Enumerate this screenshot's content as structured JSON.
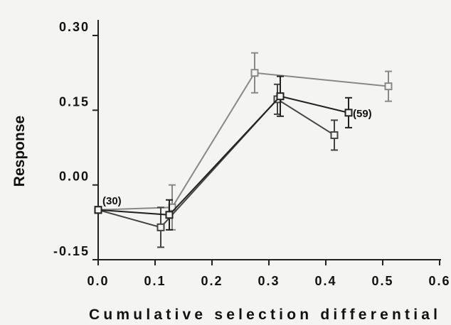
{
  "chart_data": {
    "type": "line",
    "title": "",
    "xlabel": "Cumulative selection differential",
    "ylabel": "Response",
    "xlim": [
      0.0,
      0.6
    ],
    "ylim": [
      -0.15,
      0.3
    ],
    "x_ticks": [
      "0.0",
      "0.1",
      "0.2",
      "0.3",
      "0.4",
      "0.5",
      "0.6"
    ],
    "y_ticks": [
      "-0.15",
      "0.00",
      "0.15",
      "0.30"
    ],
    "grid": false,
    "legend": "none",
    "series": [
      {
        "color": "#888888",
        "points": [
          {
            "x": 0.0,
            "y": -0.05,
            "err": 0.0
          },
          {
            "x": 0.13,
            "y": -0.045,
            "err": 0.045
          },
          {
            "x": 0.275,
            "y": 0.225,
            "err": 0.04
          },
          {
            "x": 0.51,
            "y": 0.198,
            "err": 0.03
          }
        ]
      },
      {
        "color": "#444444",
        "points": [
          {
            "x": 0.0,
            "y": -0.05,
            "err": 0.0
          },
          {
            "x": 0.11,
            "y": -0.085,
            "err": 0.04
          },
          {
            "x": 0.315,
            "y": 0.172,
            "err": 0.03
          },
          {
            "x": 0.415,
            "y": 0.1,
            "err": 0.03
          }
        ]
      },
      {
        "color": "#222222",
        "points": [
          {
            "x": 0.0,
            "y": -0.05,
            "err": 0.0
          },
          {
            "x": 0.125,
            "y": -0.06,
            "err": 0.03
          },
          {
            "x": 0.32,
            "y": 0.178,
            "err": 0.04
          },
          {
            "x": 0.44,
            "y": 0.145,
            "err": 0.03
          }
        ]
      }
    ],
    "annotations": [
      {
        "text": "(30)",
        "x": 0.0,
        "y": -0.05
      },
      {
        "text": "(59)",
        "x": 0.44,
        "y": 0.145
      }
    ]
  }
}
